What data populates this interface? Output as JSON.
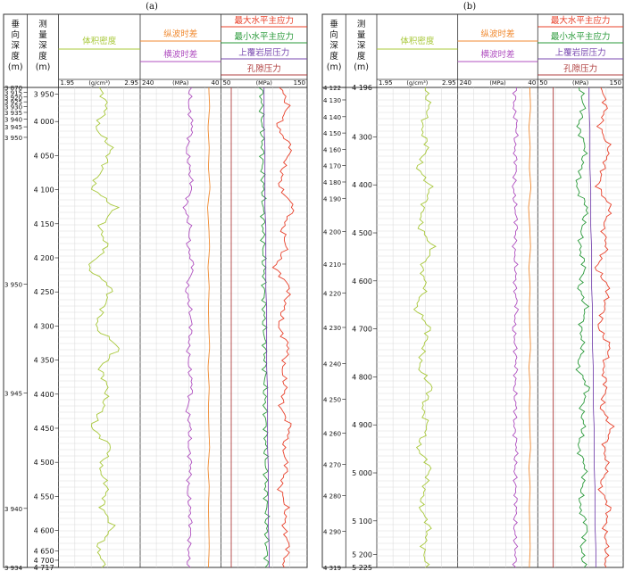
{
  "panels": [
    {
      "label": "(a)",
      "headers": {
        "vertical_depth": "垂\n向\n深\n度\n(m)",
        "measured_depth": "测\n量\n深\n度\n(m)",
        "density": "体积密度",
        "p_slowness": "纵波时差",
        "s_slowness": "横波时差",
        "smax": "最大水平主应力",
        "smin": "最小水平主应力",
        "overburden": "上覆岩层压力",
        "pore": "孔隙压力"
      },
      "scales": {
        "density_min": "1.95",
        "density_unit": "(g/cm³)",
        "density_max": "2.95",
        "slow_min": "240",
        "slow_unit": "(MPa)",
        "slow_max": "40",
        "pres_min": "50",
        "pres_unit": "(MPa)",
        "pres_max": "150"
      },
      "tvd_ticks": [
        {
          "label": "3 870",
          "pos": 0.0
        },
        {
          "label": "3 915",
          "pos": 0.01
        },
        {
          "label": "3 920",
          "pos": 0.02
        },
        {
          "label": "3 925",
          "pos": 0.03
        },
        {
          "label": "3 930",
          "pos": 0.04
        },
        {
          "label": "3 935",
          "pos": 0.052
        },
        {
          "label": "3 940",
          "pos": 0.066
        },
        {
          "label": "3 945",
          "pos": 0.082
        },
        {
          "label": "3 950",
          "pos": 0.104
        },
        {
          "label": "3 950",
          "pos": 0.41
        },
        {
          "label": "3 945",
          "pos": 0.637
        },
        {
          "label": "3 940",
          "pos": 0.877
        },
        {
          "label": "3 934",
          "pos": 1.0
        }
      ],
      "md_ticks": [
        {
          "label": "3 950",
          "pos": 0.014
        },
        {
          "label": "4 000",
          "pos": 0.071
        },
        {
          "label": "4 050",
          "pos": 0.142
        },
        {
          "label": "4 100",
          "pos": 0.213
        },
        {
          "label": "4 150",
          "pos": 0.284
        },
        {
          "label": "4 200",
          "pos": 0.355
        },
        {
          "label": "4 250",
          "pos": 0.426
        },
        {
          "label": "4 300",
          "pos": 0.497
        },
        {
          "label": "4 350",
          "pos": 0.568
        },
        {
          "label": "4 400",
          "pos": 0.639
        },
        {
          "label": "4 450",
          "pos": 0.71
        },
        {
          "label": "4 500",
          "pos": 0.781
        },
        {
          "label": "4 550",
          "pos": 0.852
        },
        {
          "label": "4 600",
          "pos": 0.923
        },
        {
          "label": "4 650",
          "pos": 0.966
        },
        {
          "label": "4 700",
          "pos": 0.985
        },
        {
          "label": "4 717",
          "pos": 1.0
        }
      ]
    },
    {
      "label": "(b)",
      "headers": {
        "vertical_depth": "垂\n向\n深\n度\n(m)",
        "measured_depth": "测\n量\n深\n度\n(m)",
        "density": "体积密度",
        "p_slowness": "纵波时差",
        "s_slowness": "横波时差",
        "smax": "最大水平主应力",
        "smin": "最小水平主应力",
        "overburden": "上覆岩层压力",
        "pore": "孔隙压力"
      },
      "scales": {
        "density_min": "1.95",
        "density_unit": "(g/cm³)",
        "density_max": "2.95",
        "slow_min": "240",
        "slow_unit": "(MPa)",
        "slow_max": "40",
        "pres_min": "50",
        "pres_unit": "(MPa)",
        "pres_max": "150"
      },
      "tvd_ticks": [
        {
          "label": "4 122",
          "pos": 0.0
        },
        {
          "label": "4 130",
          "pos": 0.026
        },
        {
          "label": "4 140",
          "pos": 0.061
        },
        {
          "label": "4 150",
          "pos": 0.095
        },
        {
          "label": "4 160",
          "pos": 0.129
        },
        {
          "label": "4 170",
          "pos": 0.163
        },
        {
          "label": "4 180",
          "pos": 0.197
        },
        {
          "label": "4 190",
          "pos": 0.231
        },
        {
          "label": "4 200",
          "pos": 0.3
        },
        {
          "label": "4 210",
          "pos": 0.368
        },
        {
          "label": "4 220",
          "pos": 0.428
        },
        {
          "label": "4 230",
          "pos": 0.5
        },
        {
          "label": "4 240",
          "pos": 0.575
        },
        {
          "label": "4 250",
          "pos": 0.65
        },
        {
          "label": "4 260",
          "pos": 0.72
        },
        {
          "label": "4 270",
          "pos": 0.785
        },
        {
          "label": "4 280",
          "pos": 0.85
        },
        {
          "label": "4 290",
          "pos": 0.925
        },
        {
          "label": "4 319",
          "pos": 1.0
        }
      ],
      "md_ticks": [
        {
          "label": "4 196",
          "pos": 0.0
        },
        {
          "label": "4 300",
          "pos": 0.103
        },
        {
          "label": "4 400",
          "pos": 0.203
        },
        {
          "label": "4 500",
          "pos": 0.303
        },
        {
          "label": "4 600",
          "pos": 0.403
        },
        {
          "label": "4 700",
          "pos": 0.503
        },
        {
          "label": "4 800",
          "pos": 0.603
        },
        {
          "label": "4 900",
          "pos": 0.703
        },
        {
          "label": "5 000",
          "pos": 0.803
        },
        {
          "label": "5 100",
          "pos": 0.903
        },
        {
          "label": "5 200",
          "pos": 0.973
        },
        {
          "label": "5 225",
          "pos": 1.0
        }
      ]
    }
  ],
  "colors": {
    "density": "#a8c83a",
    "p_slowness": "#f08a30",
    "s_slowness": "#b050c0",
    "smax": "#e8402a",
    "smin": "#2a9a3a",
    "overburden": "#7a4ab0",
    "pore": "#b04040",
    "grid": "#d9d9d9",
    "frame": "#333333"
  },
  "chart_data": [
    {
      "type": "line",
      "panel": "(a)",
      "ylabel": "测量深度(m)",
      "ylim": [
        3934,
        4717
      ],
      "series": [
        {
          "name": "体积密度",
          "unit": "g/cm³",
          "xlim": [
            1.95,
            2.95
          ],
          "values": [
            2.45,
            2.55,
            2.4,
            2.6,
            2.5,
            2.35,
            2.65,
            2.45,
            2.55,
            2.3,
            2.6,
            2.5,
            2.4,
            2.7,
            2.45,
            2.55,
            2.5,
            2.35,
            2.6,
            2.45,
            2.55,
            2.48,
            2.62,
            2.42,
            2.52
          ]
        },
        {
          "name": "纵波时差",
          "unit": "MPa",
          "xlim": [
            240,
            40
          ],
          "values": [
            70,
            68,
            72,
            69,
            71,
            67,
            73,
            70,
            68,
            72,
            69,
            71,
            70,
            68,
            72,
            69,
            71,
            70,
            68,
            72,
            69,
            71,
            70,
            69,
            71
          ]
        },
        {
          "name": "横波时差",
          "unit": "MPa",
          "xlim": [
            240,
            40
          ],
          "values": [
            115,
            120,
            110,
            125,
            118,
            112,
            130,
            116,
            122,
            108,
            126,
            117,
            113,
            121,
            119,
            111,
            124,
            116,
            120,
            114,
            123,
            117,
            115,
            119,
            121
          ]
        },
        {
          "name": "最大水平主应力",
          "unit": "MPa",
          "xlim": [
            50,
            150
          ],
          "values": [
            120,
            128,
            115,
            132,
            122,
            118,
            135,
            121,
            126,
            112,
            130,
            123,
            117,
            129,
            121,
            125,
            119,
            131,
            122,
            127,
            118,
            126,
            123,
            129,
            121
          ]
        },
        {
          "name": "最小水平主应力",
          "unit": "MPa",
          "xlim": [
            50,
            150
          ],
          "values": [
            97,
            97,
            98,
            98,
            98,
            99,
            99,
            99,
            99,
            100,
            100,
            100,
            100,
            101,
            101,
            101,
            101,
            102,
            102,
            102,
            102,
            103,
            103,
            103,
            103
          ]
        },
        {
          "name": "上覆岩层压力",
          "unit": "MPa",
          "xlim": [
            50,
            150
          ],
          "values": [
            100,
            100,
            100,
            101,
            101,
            101,
            101,
            102,
            102,
            102,
            102,
            103,
            103,
            103,
            103,
            104,
            104,
            104,
            104,
            105,
            105,
            105,
            105,
            106,
            106
          ]
        },
        {
          "name": "孔隙压力",
          "unit": "MPa",
          "xlim": [
            50,
            150
          ],
          "values": [
            62,
            62,
            62,
            62,
            62,
            62,
            62,
            62,
            62,
            62,
            62,
            62,
            62,
            62,
            62,
            62,
            62,
            62,
            62,
            62,
            62,
            62,
            62,
            62,
            62
          ]
        }
      ]
    },
    {
      "type": "line",
      "panel": "(b)",
      "ylabel": "测量深度(m)",
      "ylim": [
        4196,
        5225
      ],
      "series": [
        {
          "name": "体积密度",
          "unit": "g/cm³",
          "xlim": [
            1.95,
            2.95
          ],
          "values": [
            2.55,
            2.6,
            2.5,
            2.58,
            2.45,
            2.62,
            2.52,
            2.48,
            2.65,
            2.5,
            2.56,
            2.42,
            2.6,
            2.53,
            2.47,
            2.63,
            2.51,
            2.58,
            2.45,
            2.61,
            2.54,
            2.49,
            2.6,
            2.52,
            2.57
          ]
        },
        {
          "name": "纵波时差",
          "unit": "MPa",
          "xlim": [
            240,
            40
          ],
          "values": [
            60,
            58,
            62,
            59,
            61,
            57,
            63,
            60,
            58,
            62,
            59,
            61,
            60,
            58,
            62,
            59,
            61,
            60,
            58,
            62,
            59,
            61,
            60,
            59,
            61
          ]
        },
        {
          "name": "横波时差",
          "unit": "MPa",
          "xlim": [
            240,
            40
          ],
          "values": [
            95,
            100,
            92,
            98,
            94,
            101,
            96,
            93,
            99,
            95,
            97,
            92,
            100,
            96,
            94,
            98,
            95,
            99,
            93,
            97,
            96,
            94,
            98,
            95,
            97
          ]
        },
        {
          "name": "最大水平主应力",
          "unit": "MPa",
          "xlim": [
            50,
            150
          ],
          "values": [
            125,
            130,
            122,
            134,
            127,
            120,
            136,
            126,
            131,
            118,
            133,
            128,
            121,
            135,
            126,
            130,
            124,
            137,
            127,
            132,
            122,
            134,
            128,
            131,
            129
          ]
        },
        {
          "name": "最小水平主应力",
          "unit": "MPa",
          "xlim": [
            50,
            150
          ],
          "values": [
            100,
            104,
            97,
            106,
            101,
            95,
            108,
            102,
            99,
            105,
            98,
            107,
            100,
            103,
            96,
            109,
            101,
            104,
            97,
            106,
            102,
            99,
            108,
            101,
            105
          ]
        },
        {
          "name": "上覆岩层压力",
          "unit": "MPa",
          "xlim": [
            50,
            150
          ],
          "values": [
            110,
            110,
            111,
            111,
            111,
            112,
            112,
            112,
            113,
            113,
            113,
            114,
            114,
            114,
            115,
            115,
            115,
            116,
            116,
            116,
            117,
            117,
            117,
            118,
            118
          ]
        },
        {
          "name": "孔隙压力",
          "unit": "MPa",
          "xlim": [
            50,
            150
          ],
          "values": [
            68,
            68,
            68,
            68,
            68,
            68,
            68,
            68,
            68,
            68,
            68,
            68,
            68,
            68,
            68,
            68,
            68,
            68,
            68,
            68,
            68,
            68,
            68,
            68,
            68
          ]
        }
      ]
    }
  ]
}
